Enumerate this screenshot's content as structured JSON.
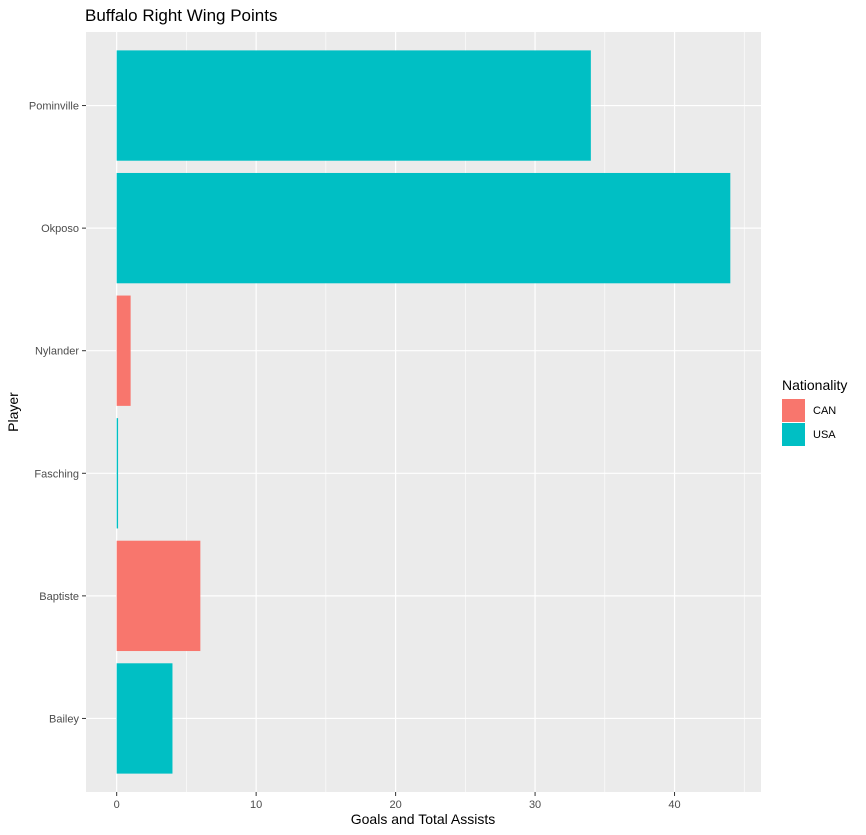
{
  "chart_data": {
    "type": "bar",
    "orientation": "horizontal",
    "title": "Buffalo Right Wing Points",
    "xlabel": "Goals and Total Assists",
    "ylabel": "Player",
    "categories": [
      "Bailey",
      "Baptiste",
      "Fasching",
      "Nylander",
      "Okposo",
      "Pominville"
    ],
    "values": [
      4,
      6,
      0.1,
      1,
      44,
      34
    ],
    "groups": [
      "USA",
      "CAN",
      "USA",
      "CAN",
      "USA",
      "USA"
    ],
    "xlim": [
      -2.2,
      46.2
    ],
    "xticks": [
      0,
      10,
      20,
      30,
      40
    ],
    "grid": true,
    "legend": {
      "title": "Nationality",
      "placement": "right",
      "entries": [
        {
          "label": "CAN",
          "color": "#F8766D"
        },
        {
          "label": "USA",
          "color": "#00BFC4"
        }
      ]
    }
  },
  "colors": {
    "panel_background": "#EBEBEB",
    "grid_line": "#FFFFFF",
    "CAN": "#F8766D",
    "USA": "#00BFC4"
  }
}
